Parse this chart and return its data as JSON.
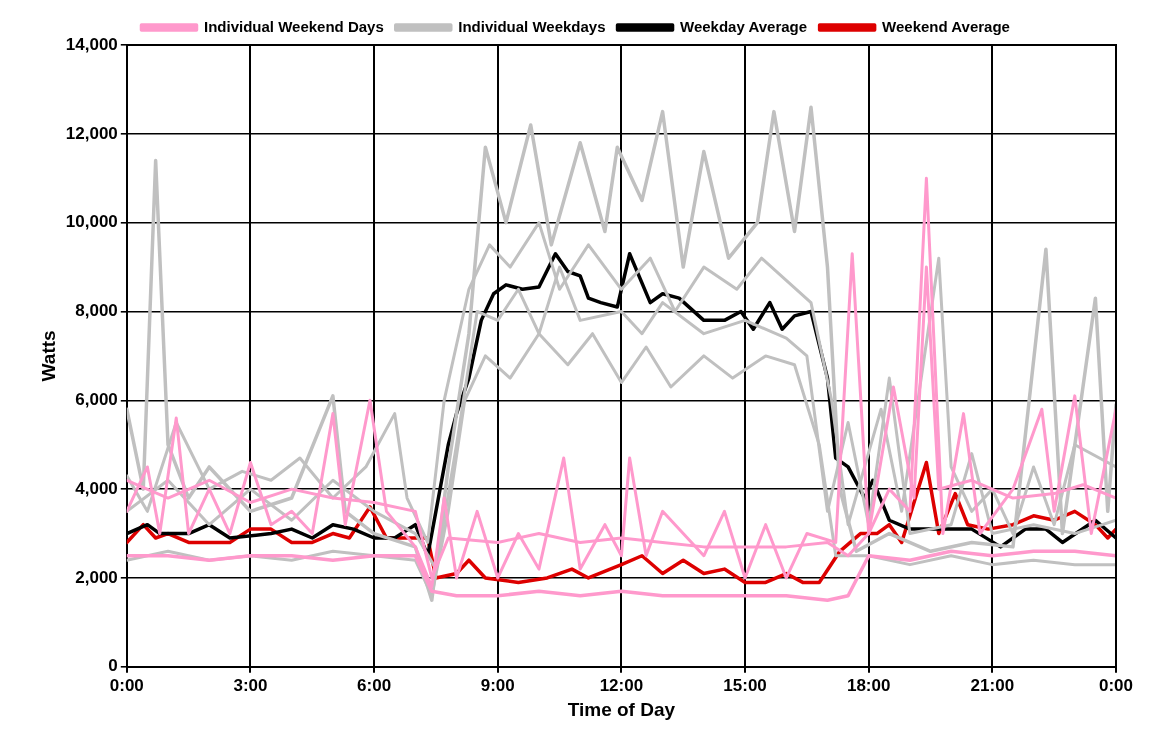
{
  "chart_data": {
    "type": "line",
    "xlabel": "Time of Day",
    "ylabel": "Watts",
    "legend": "top",
    "grid": true,
    "marker": "none",
    "line_style": "solid",
    "xlim": [
      0,
      24
    ],
    "xticks": [
      {
        "value": 0,
        "label": "0:00"
      },
      {
        "value": 3,
        "label": "3:00"
      },
      {
        "value": 6,
        "label": "6:00"
      },
      {
        "value": 9,
        "label": "9:00"
      },
      {
        "value": 12,
        "label": "12:00"
      },
      {
        "value": 15,
        "label": "15:00"
      },
      {
        "value": 18,
        "label": "18:00"
      },
      {
        "value": 21,
        "label": "21:00"
      },
      {
        "value": 24,
        "label": "0:00"
      }
    ],
    "ylim": [
      0,
      14000
    ],
    "yticks": [
      0,
      {
        "value": 2000,
        "label": "2,000"
      },
      {
        "value": 4000,
        "label": "4,000"
      },
      {
        "value": 6000,
        "label": "6,000"
      },
      {
        "value": 8000,
        "label": "8,000"
      },
      {
        "value": 10000,
        "label": "10,000"
      },
      {
        "value": 12000,
        "label": "12,000"
      },
      {
        "value": 14000,
        "label": "14,000"
      }
    ],
    "series": [
      {
        "name": "Individual Weekend Days",
        "color": "#ff99cc",
        "x": [
          0,
          1,
          2,
          3,
          4,
          5,
          6,
          7,
          7.4,
          8,
          9,
          10,
          11,
          12,
          13,
          14,
          15,
          16,
          17,
          17.5,
          18,
          19,
          20,
          21,
          22,
          23,
          24
        ],
        "values": [
          2500,
          2500,
          2400,
          2500,
          2500,
          2400,
          2500,
          2500,
          1700,
          1600,
          1600,
          1700,
          1600,
          1700,
          1600,
          1600,
          1600,
          1600,
          1500,
          1600,
          2500,
          2400,
          2600,
          2500,
          2600,
          2600,
          2500
        ]
      },
      {
        "color": "#ff99cc",
        "x": [
          0,
          0.5,
          0.8,
          1.2,
          1.5,
          2,
          2.5,
          3,
          3.5,
          4,
          4.5,
          5,
          5.3,
          5.9,
          6.3,
          7,
          7.4,
          7.7,
          8,
          8.5,
          9,
          9.5,
          10,
          10.6,
          11,
          11.6,
          12,
          12.2,
          12.6,
          13,
          14,
          14.5,
          15,
          15.5,
          16,
          16.5,
          17.2,
          17.6,
          18,
          18.5,
          19,
          19.4,
          19.8,
          20.3,
          20.7,
          21.5,
          22.2,
          22.5,
          23,
          23.4,
          24
        ],
        "values": [
          3500,
          4500,
          3000,
          5600,
          3000,
          4000,
          3000,
          4600,
          3200,
          3500,
          3000,
          5700,
          3200,
          6000,
          3500,
          2700,
          1800,
          3800,
          2000,
          3500,
          2000,
          3000,
          2200,
          4700,
          2200,
          3200,
          2500,
          4700,
          2500,
          3500,
          2500,
          3500,
          2000,
          3200,
          2000,
          3000,
          2800,
          9300,
          3000,
          4000,
          3500,
          11000,
          3000,
          5700,
          3000,
          4000,
          5800,
          3500,
          6100,
          3000,
          5800
        ]
      },
      {
        "color": "#ff99cc",
        "x": [
          0,
          1,
          2,
          3,
          4,
          5,
          6,
          7,
          7.4,
          7.8,
          9,
          10,
          11,
          12,
          13,
          14,
          15,
          16,
          17,
          17.5,
          18,
          18.6,
          19.1,
          19.4,
          19.7,
          20.5,
          21.5,
          22.5,
          23.2,
          24
        ],
        "values": [
          4200,
          3800,
          4200,
          3700,
          4000,
          3800,
          3700,
          3500,
          2000,
          2900,
          2800,
          3000,
          2800,
          2900,
          2800,
          2700,
          2700,
          2700,
          2800,
          2500,
          3000,
          6300,
          3800,
          9000,
          4000,
          4200,
          3800,
          3900,
          4100,
          3800
        ]
      },
      {
        "name": "Individual Weekdays",
        "color": "#c0c0c0",
        "x": [
          0,
          0.4,
          0.7,
          1,
          1.5,
          2,
          3,
          4,
          5,
          5.3,
          6,
          7,
          7.4,
          7.8,
          8.3,
          8.7,
          9.2,
          9.8,
          10.3,
          11,
          11.6,
          11.9,
          12.5,
          13,
          13.5,
          14,
          14.6,
          15.3,
          15.7,
          16.2,
          16.6,
          17,
          17.3,
          17.7,
          18.5,
          19.5,
          20.5,
          21.5,
          22.3,
          22.7,
          23.5,
          23.8,
          24
        ],
        "values": [
          5800,
          4000,
          11400,
          5000,
          3800,
          4500,
          3500,
          3800,
          6100,
          3500,
          3000,
          2700,
          1500,
          4500,
          7500,
          11700,
          10000,
          12200,
          9500,
          11800,
          9800,
          11700,
          10500,
          12500,
          9000,
          11600,
          9200,
          10000,
          12500,
          9800,
          12600,
          9000,
          4000,
          2600,
          3000,
          2600,
          2800,
          2700,
          9400,
          3000,
          8300,
          3500,
          5900
        ]
      },
      {
        "color": "#c0c0c0",
        "x": [
          0,
          1,
          2,
          3,
          4,
          5,
          6,
          7,
          7.4,
          7.8,
          8.2,
          8.7,
          9.3,
          10,
          10.7,
          11.3,
          12,
          12.6,
          13.2,
          14,
          14.7,
          15.5,
          16.2,
          16.8,
          17.2,
          18,
          19,
          20,
          21,
          22,
          23,
          24
        ],
        "values": [
          2400,
          2600,
          2400,
          2500,
          2400,
          2600,
          2500,
          2400,
          1600,
          3500,
          6000,
          7000,
          6500,
          7500,
          6800,
          7500,
          6400,
          7200,
          6300,
          7000,
          6500,
          7000,
          6800,
          5000,
          2500,
          2500,
          2300,
          2500,
          2300,
          2400,
          2300,
          2300
        ]
      },
      {
        "color": "#c0c0c0",
        "x": [
          0,
          0.5,
          1.2,
          2,
          2.8,
          3.5,
          4.2,
          5,
          5.8,
          6.5,
          6.8,
          7.3,
          7.7,
          8.3,
          8.8,
          9.3,
          10,
          10.5,
          11.2,
          12,
          12.7,
          13.3,
          14,
          14.8,
          15.4,
          16,
          16.6,
          17.1,
          17.5,
          18.3,
          18.8,
          19.7,
          20,
          20.5,
          21,
          21.5,
          22,
          22.5,
          23,
          24
        ],
        "values": [
          4300,
          3500,
          5500,
          4000,
          4400,
          4200,
          4700,
          3800,
          4500,
          5700,
          3800,
          2800,
          6000,
          8500,
          9500,
          9000,
          10000,
          8500,
          9500,
          8500,
          9200,
          8000,
          9000,
          8500,
          9200,
          8700,
          8200,
          6000,
          3200,
          5800,
          3500,
          9200,
          4500,
          3500,
          4000,
          3000,
          4500,
          3200,
          5000,
          4500
        ]
      },
      {
        "color": "#c0c0c0",
        "x": [
          0,
          1,
          2,
          3,
          4,
          5,
          6,
          7,
          7.5,
          8,
          8.5,
          9,
          9.5,
          10,
          10.5,
          11,
          12,
          12.5,
          13,
          14,
          15,
          16,
          16.5,
          17,
          17.5,
          18,
          18.5,
          19,
          20,
          20.5,
          21,
          22,
          23,
          24
        ],
        "values": [
          3500,
          4200,
          3200,
          4000,
          3300,
          4200,
          3500,
          3000,
          2200,
          5000,
          8000,
          7800,
          8500,
          7500,
          9000,
          7800,
          8000,
          7500,
          8200,
          7500,
          7800,
          7400,
          7000,
          3500,
          5500,
          3200,
          6500,
          3000,
          3200,
          4800,
          3000,
          3200,
          3000,
          3300
        ]
      },
      {
        "name": "Weekday Average",
        "color": "#000000",
        "x": [
          0,
          0.5,
          0.8,
          1.5,
          2,
          2.5,
          3.5,
          4,
          4.5,
          5,
          5.5,
          6,
          6.5,
          7,
          7.3,
          7.5,
          7.8,
          8,
          8.3,
          8.6,
          8.9,
          9.2,
          9.6,
          10,
          10.4,
          10.7,
          11,
          11.2,
          11.5,
          11.9,
          12.2,
          12.7,
          13,
          13.4,
          14,
          14.5,
          14.9,
          15.2,
          15.6,
          15.9,
          16.2,
          16.6,
          17,
          17.2,
          17.5,
          17.9,
          18.1,
          18.5,
          19,
          20,
          20.5,
          21.2,
          21.8,
          22.3,
          22.7,
          23.5,
          24
        ],
        "values": [
          3000,
          3200,
          3000,
          3000,
          3200,
          2900,
          3000,
          3100,
          2900,
          3200,
          3100,
          2900,
          2900,
          3200,
          2500,
          3500,
          5000,
          5700,
          6500,
          7800,
          8400,
          8600,
          8500,
          8550,
          9300,
          8900,
          8800,
          8300,
          8200,
          8100,
          9300,
          8200,
          8400,
          8300,
          7800,
          7800,
          8000,
          7600,
          8200,
          7600,
          7900,
          8000,
          6500,
          4700,
          4500,
          3800,
          4200,
          3300,
          3100,
          3100,
          3100,
          2700,
          3100,
          3100,
          2800,
          3300,
          2900
        ]
      },
      {
        "name": "Weekend Average",
        "color": "#dd0000",
        "x": [
          0,
          0.4,
          0.7,
          1,
          1.5,
          2.5,
          3,
          3.5,
          4,
          4.5,
          5,
          5.4,
          5.9,
          6.3,
          7.3,
          7.5,
          8,
          8.3,
          8.7,
          9.5,
          10.2,
          10.8,
          11.2,
          12,
          12.5,
          13,
          13.5,
          14,
          14.5,
          15,
          15.5,
          16,
          16.4,
          16.8,
          17.3,
          17.8,
          18.2,
          18.5,
          18.8,
          19.4,
          19.7,
          20.1,
          20.4,
          20.9,
          21.5,
          22,
          22.5,
          23,
          23.5,
          23.8,
          24
        ],
        "values": [
          2800,
          3200,
          2900,
          3000,
          2800,
          2800,
          3100,
          3100,
          2800,
          2800,
          3000,
          2900,
          3600,
          2900,
          2900,
          2000,
          2100,
          2400,
          2000,
          1900,
          2000,
          2200,
          2000,
          2300,
          2500,
          2100,
          2400,
          2100,
          2200,
          1900,
          1900,
          2100,
          1900,
          1900,
          2600,
          3000,
          3000,
          3200,
          2800,
          4600,
          3000,
          3900,
          3200,
          3100,
          3200,
          3400,
          3300,
          3500,
          3200,
          2900,
          3100
        ]
      }
    ]
  }
}
